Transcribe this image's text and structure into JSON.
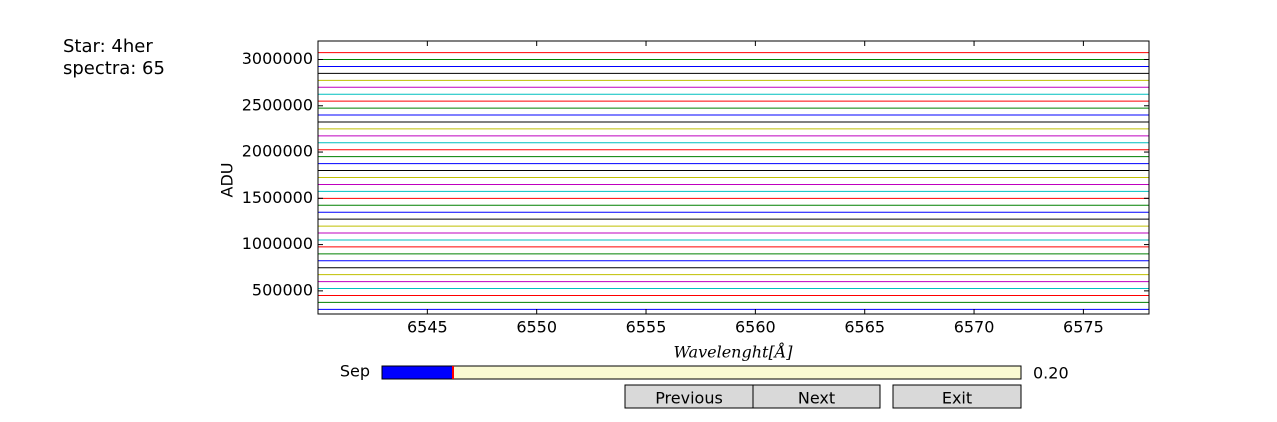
{
  "info": {
    "star": "Star: 4her",
    "spectra": "spectra: 65"
  },
  "chart_data": {
    "type": "line",
    "xlabel": "Wavelenght[Å]",
    "ylabel": "ADU",
    "x": [
      6540,
      6578
    ],
    "xlim": [
      6540,
      6578
    ],
    "xticks": [
      6545,
      6550,
      6555,
      6560,
      6565,
      6570,
      6575
    ],
    "ylim": [
      250000,
      3200000
    ],
    "yticks": [
      500000,
      1000000,
      1500000,
      2000000,
      2500000,
      3000000
    ],
    "series": [
      {
        "color": "#0000ff",
        "values": [
          300000,
          300000
        ]
      },
      {
        "color": "#008000",
        "values": [
          375000,
          375000
        ]
      },
      {
        "color": "#ff0000",
        "values": [
          450000,
          450000
        ]
      },
      {
        "color": "#00bfbf",
        "values": [
          525000,
          525000
        ]
      },
      {
        "color": "#bf00bf",
        "values": [
          600000,
          600000
        ]
      },
      {
        "color": "#bfbf00",
        "values": [
          675000,
          675000
        ]
      },
      {
        "color": "#000000",
        "values": [
          750000,
          750000
        ]
      },
      {
        "color": "#0000ff",
        "values": [
          825000,
          825000
        ]
      },
      {
        "color": "#008000",
        "values": [
          900000,
          900000
        ]
      },
      {
        "color": "#ff0000",
        "values": [
          975000,
          975000
        ]
      },
      {
        "color": "#00bfbf",
        "values": [
          1050000,
          1050000
        ]
      },
      {
        "color": "#bf00bf",
        "values": [
          1125000,
          1125000
        ]
      },
      {
        "color": "#bfbf00",
        "values": [
          1200000,
          1200000
        ]
      },
      {
        "color": "#000000",
        "values": [
          1275000,
          1275000
        ]
      },
      {
        "color": "#0000ff",
        "values": [
          1350000,
          1350000
        ]
      },
      {
        "color": "#008000",
        "values": [
          1425000,
          1425000
        ]
      },
      {
        "color": "#ff0000",
        "values": [
          1500000,
          1500000
        ]
      },
      {
        "color": "#00bfbf",
        "values": [
          1575000,
          1575000
        ]
      },
      {
        "color": "#bf00bf",
        "values": [
          1650000,
          1650000
        ]
      },
      {
        "color": "#bfbf00",
        "values": [
          1725000,
          1725000
        ]
      },
      {
        "color": "#000000",
        "values": [
          1800000,
          1800000
        ]
      },
      {
        "color": "#0000ff",
        "values": [
          1875000,
          1875000
        ]
      },
      {
        "color": "#008000",
        "values": [
          1950000,
          1950000
        ]
      },
      {
        "color": "#ff0000",
        "values": [
          2025000,
          2025000
        ]
      },
      {
        "color": "#00bfbf",
        "values": [
          2100000,
          2100000
        ]
      },
      {
        "color": "#bf00bf",
        "values": [
          2175000,
          2175000
        ]
      },
      {
        "color": "#bfbf00",
        "values": [
          2250000,
          2250000
        ]
      },
      {
        "color": "#000000",
        "values": [
          2325000,
          2325000
        ]
      },
      {
        "color": "#0000ff",
        "values": [
          2400000,
          2400000
        ]
      },
      {
        "color": "#008000",
        "values": [
          2475000,
          2475000
        ]
      },
      {
        "color": "#ff0000",
        "values": [
          2550000,
          2550000
        ]
      },
      {
        "color": "#00bfbf",
        "values": [
          2625000,
          2625000
        ]
      },
      {
        "color": "#bf00bf",
        "values": [
          2700000,
          2700000
        ]
      },
      {
        "color": "#bfbf00",
        "values": [
          2775000,
          2775000
        ]
      },
      {
        "color": "#000000",
        "values": [
          2850000,
          2850000
        ]
      },
      {
        "color": "#0000ff",
        "values": [
          2925000,
          2925000
        ]
      },
      {
        "color": "#008000",
        "values": [
          3000000,
          3000000
        ]
      },
      {
        "color": "#ff0000",
        "values": [
          3075000,
          3075000
        ]
      }
    ]
  },
  "controls": {
    "slider": {
      "label": "Sep",
      "value": 0.2,
      "value_label": "0.20",
      "range": [
        0,
        1.8
      ]
    },
    "buttons": [
      "Previous",
      "Next",
      "Exit"
    ]
  }
}
